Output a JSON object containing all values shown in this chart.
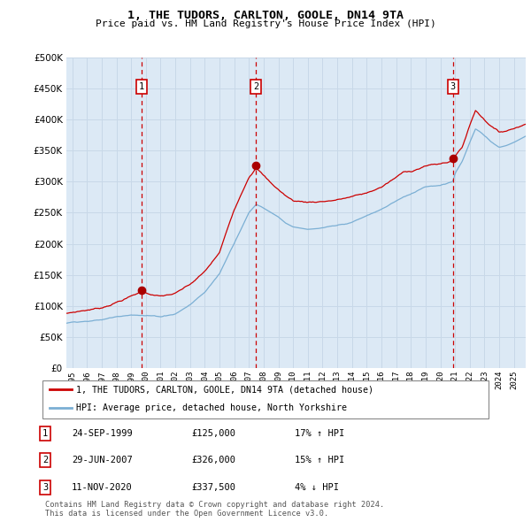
{
  "title": "1, THE TUDORS, CARLTON, GOOLE, DN14 9TA",
  "subtitle": "Price paid vs. HM Land Registry's House Price Index (HPI)",
  "background_color": "#ffffff",
  "plot_bg_color": "#dce9f5",
  "grid_color": "#c8d8e8",
  "red_line_color": "#cc0000",
  "blue_line_color": "#7bafd4",
  "vline_color": "#cc0000",
  "transactions": [
    {
      "num": 1,
      "date": "24-SEP-1999",
      "price": "£125,000",
      "pct": "17%",
      "dir": "↑",
      "x_year": 1999.73,
      "price_val": 125000
    },
    {
      "num": 2,
      "date": "29-JUN-2007",
      "price": "£326,000",
      "pct": "15%",
      "dir": "↑",
      "x_year": 2007.49,
      "price_val": 326000
    },
    {
      "num": 3,
      "date": "11-NOV-2020",
      "price": "£337,500",
      "pct": "4%",
      "dir": "↓",
      "x_year": 2020.86,
      "price_val": 337500
    }
  ],
  "legend_entries": [
    {
      "label": "1, THE TUDORS, CARLTON, GOOLE, DN14 9TA (detached house)",
      "color": "#cc0000"
    },
    {
      "label": "HPI: Average price, detached house, North Yorkshire",
      "color": "#7bafd4"
    }
  ],
  "footer": "Contains HM Land Registry data © Crown copyright and database right 2024.\nThis data is licensed under the Open Government Licence v3.0.",
  "ylim": [
    0,
    500000
  ],
  "yticks": [
    0,
    50000,
    100000,
    150000,
    200000,
    250000,
    300000,
    350000,
    400000,
    450000,
    500000
  ],
  "xlim_left": 1994.6,
  "xlim_right": 2025.8,
  "xticks": [
    1995,
    1996,
    1997,
    1998,
    1999,
    2000,
    2001,
    2002,
    2003,
    2004,
    2005,
    2006,
    2007,
    2008,
    2009,
    2010,
    2011,
    2012,
    2013,
    2014,
    2015,
    2016,
    2017,
    2018,
    2019,
    2020,
    2021,
    2022,
    2023,
    2024,
    2025
  ]
}
